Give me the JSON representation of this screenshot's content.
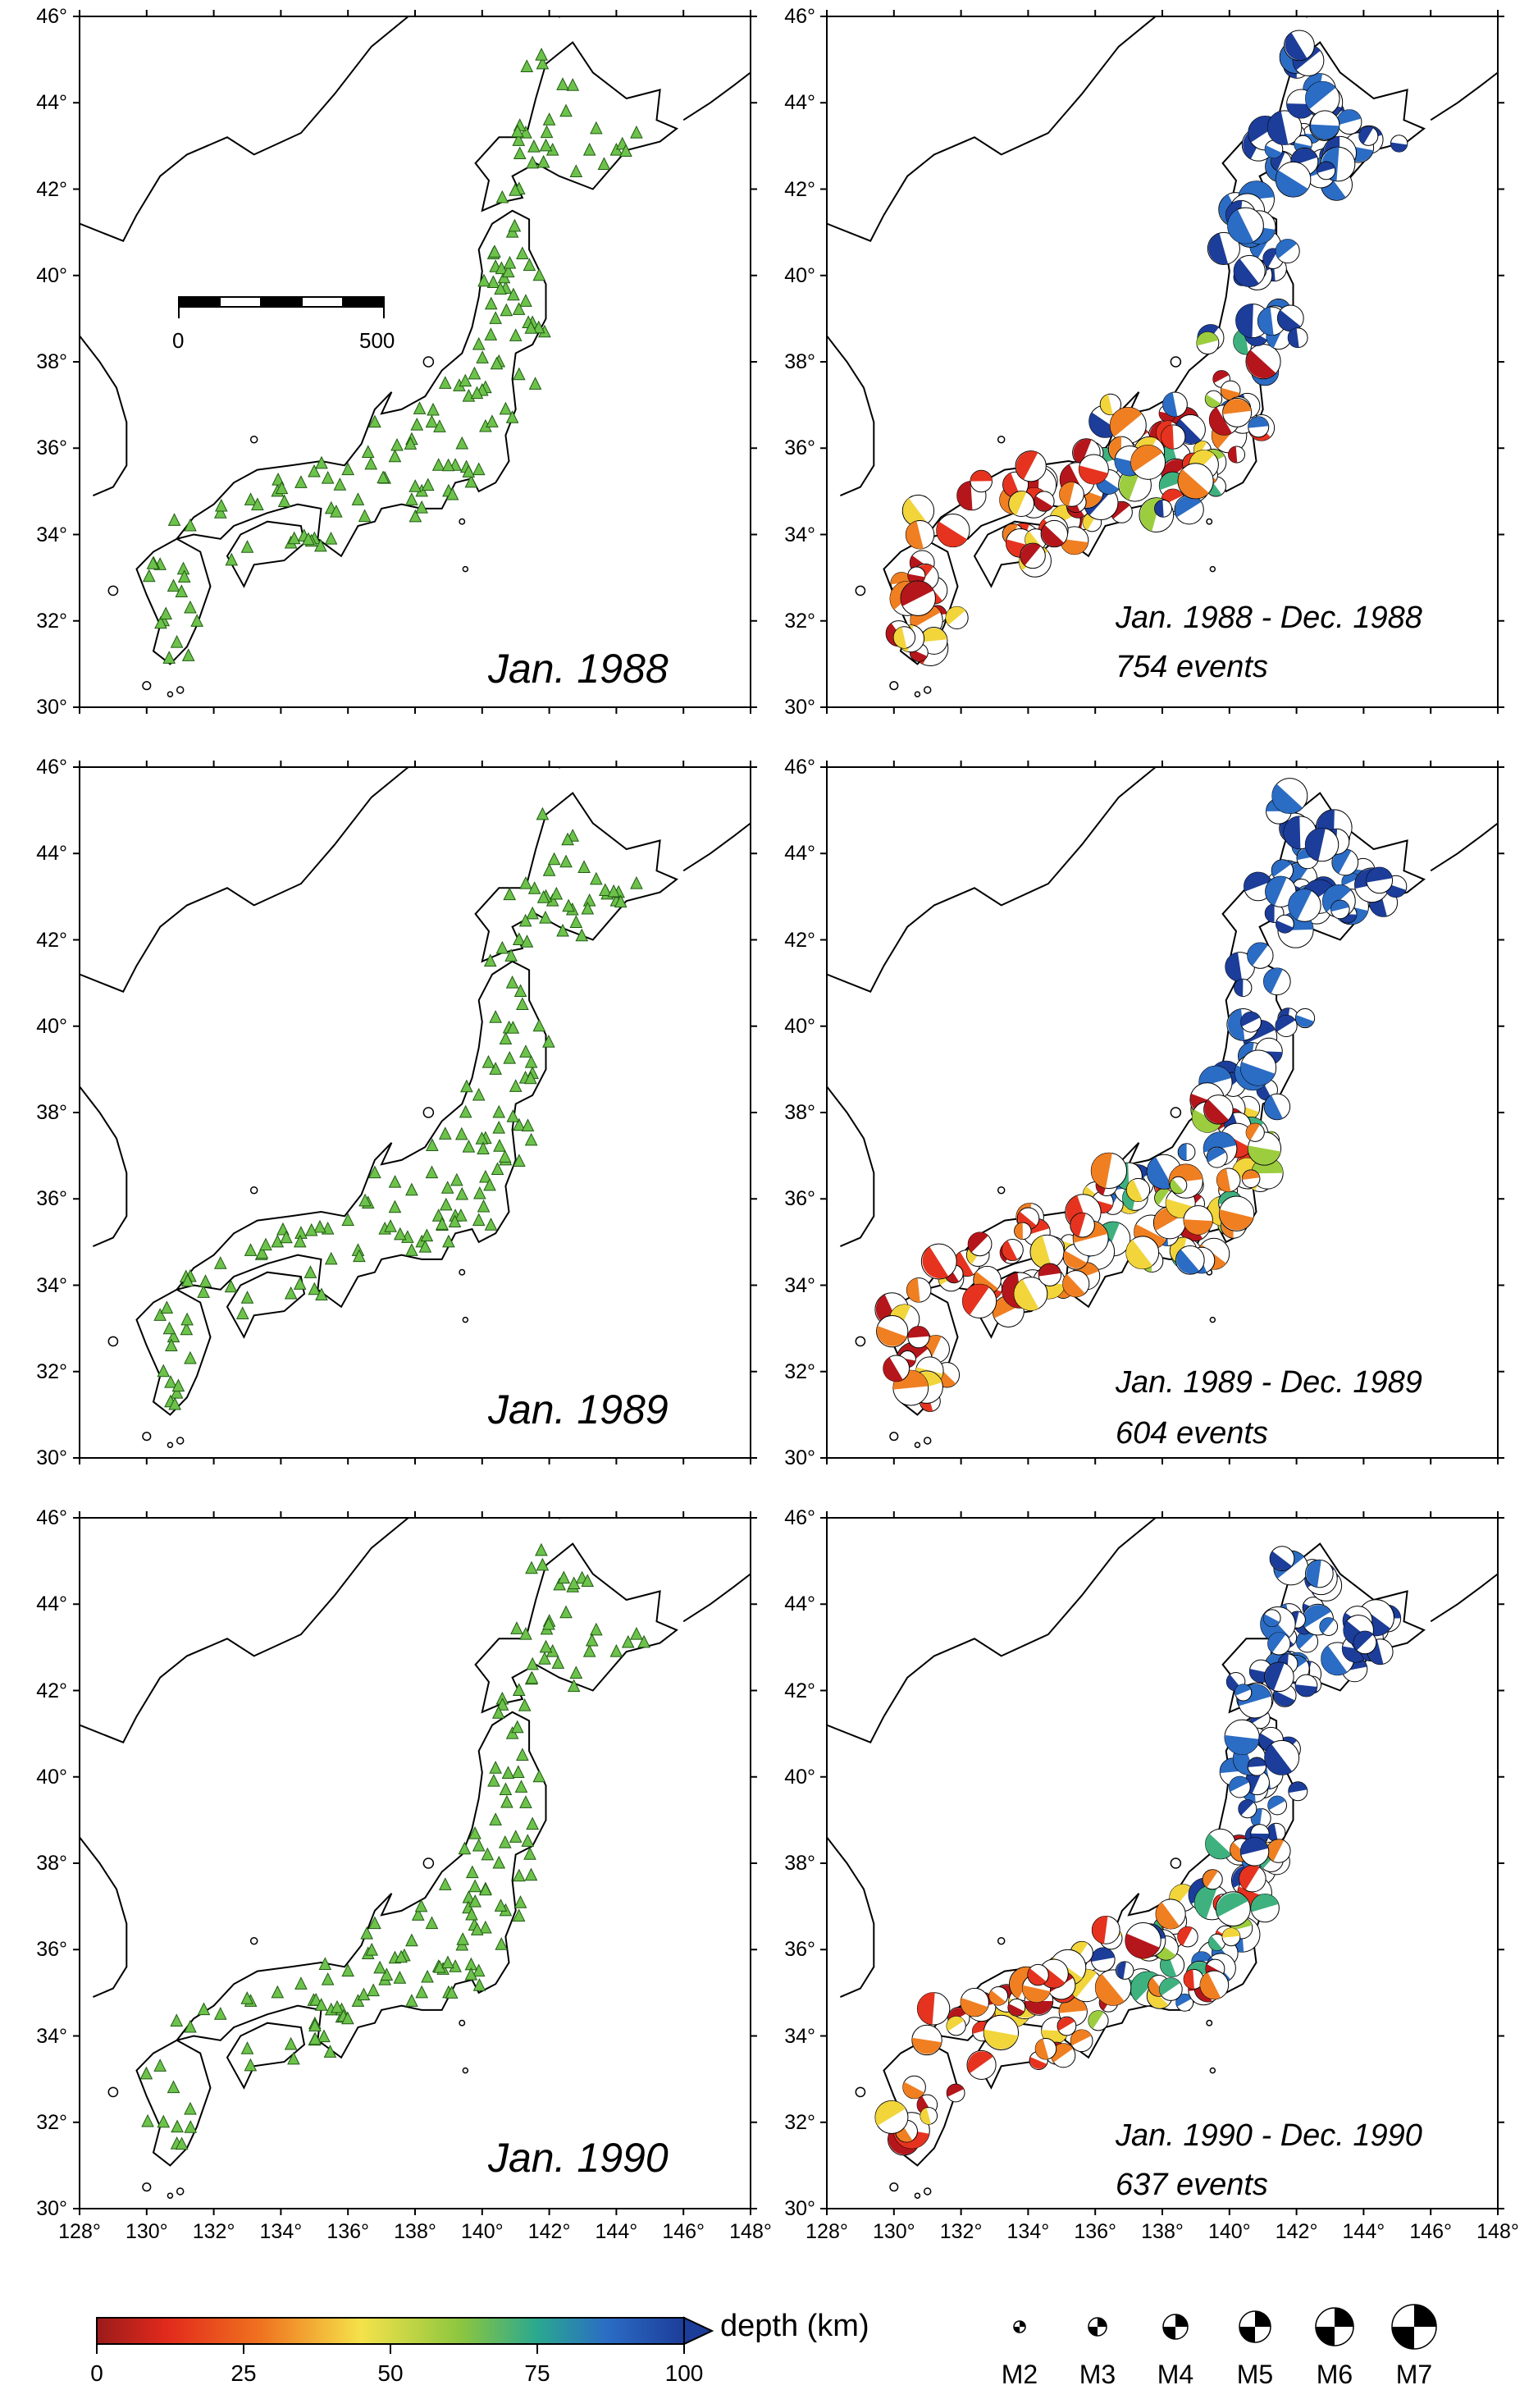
{
  "axes": {
    "lat_ticks": [
      "46°",
      "44°",
      "42°",
      "40°",
      "38°",
      "36°",
      "34°",
      "32°",
      "30°"
    ],
    "lon_ticks": [
      "128°",
      "130°",
      "132°",
      "134°",
      "136°",
      "138°",
      "140°",
      "142°",
      "144°",
      "146°",
      "148°"
    ],
    "lat_range": [
      30,
      46
    ],
    "lon_range": [
      128,
      148
    ]
  },
  "panels": [
    {
      "id": "stations-1988",
      "type": "stations",
      "caption": "Jan. 1988"
    },
    {
      "id": "events-1988",
      "type": "events",
      "caption_line1": "Jan. 1988 - Dec. 1988",
      "caption_line2": "754 events"
    },
    {
      "id": "stations-1989",
      "type": "stations",
      "caption": "Jan. 1989"
    },
    {
      "id": "events-1989",
      "type": "events",
      "caption_line1": "Jan. 1989 - Dec. 1989",
      "caption_line2": "604 events"
    },
    {
      "id": "stations-1990",
      "type": "stations",
      "caption": "Jan. 1990"
    },
    {
      "id": "events-1990",
      "type": "events",
      "caption_line1": "Jan. 1990 - Dec. 1990",
      "caption_line2": "637 events"
    }
  ],
  "scale_bar": {
    "start_label": "0",
    "end_label": "500"
  },
  "colorbar": {
    "title": "depth (km)",
    "ticks": [
      "0",
      "25",
      "50",
      "75",
      "100"
    ],
    "stops": [
      "#9b1b1b",
      "#e83a1e",
      "#f2a02a",
      "#f3e84a",
      "#8cc63f",
      "#2aa88f",
      "#2b6cc4",
      "#1c3d99"
    ]
  },
  "magnitude_legend": [
    "M2",
    "M3",
    "M4",
    "M5",
    "M6",
    "M7"
  ],
  "colors": {
    "station_fill": "#6dc24b",
    "station_stroke": "#1f5a12",
    "coast": "#000000"
  }
}
